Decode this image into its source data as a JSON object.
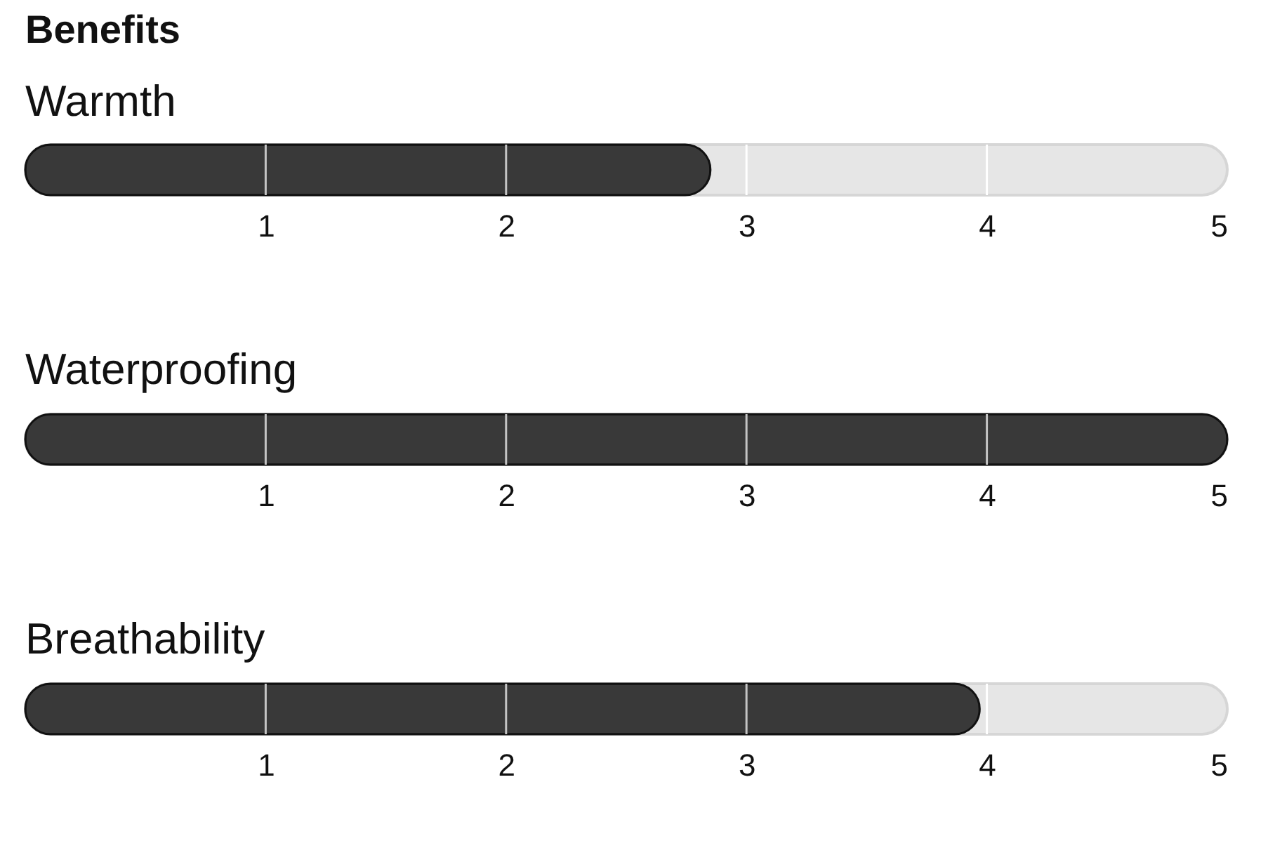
{
  "chart_data": [
    {
      "type": "bar",
      "title": "Benefits",
      "orientation": "horizontal",
      "categories": [
        "Warmth"
      ],
      "values": [
        2.85
      ],
      "color": "#393939",
      "xlim": [
        0,
        5
      ],
      "xticks": [
        1,
        2,
        3,
        4,
        5
      ],
      "ref_lines": [
        {
          "axis": "x",
          "value": 1,
          "color": "#c4c4c4"
        },
        {
          "axis": "x",
          "value": 2,
          "color": "#c4c4c4"
        },
        {
          "axis": "x",
          "value": 3,
          "color": "#ffffff"
        },
        {
          "axis": "x",
          "value": 4,
          "color": "#ffffff"
        }
      ]
    },
    {
      "type": "bar",
      "orientation": "horizontal",
      "categories": [
        "Waterproofing"
      ],
      "values": [
        5
      ],
      "color": "#393939",
      "xlim": [
        0,
        5
      ],
      "xticks": [
        1,
        2,
        3,
        4,
        5
      ],
      "ref_lines": [
        {
          "axis": "x",
          "value": 1,
          "color": "#c4c4c4"
        },
        {
          "axis": "x",
          "value": 2,
          "color": "#c4c4c4"
        },
        {
          "axis": "x",
          "value": 3,
          "color": "#c4c4c4"
        },
        {
          "axis": "x",
          "value": 4,
          "color": "#c4c4c4"
        }
      ]
    },
    {
      "type": "bar",
      "orientation": "horizontal",
      "categories": [
        "Breathability"
      ],
      "values": [
        3.97
      ],
      "color": "#393939",
      "xlim": [
        0,
        5
      ],
      "xticks": [
        1,
        2,
        3,
        4,
        5
      ],
      "ref_lines": [
        {
          "axis": "x",
          "value": 1,
          "color": "#c4c4c4"
        },
        {
          "axis": "x",
          "value": 2,
          "color": "#c4c4c4"
        },
        {
          "axis": "x",
          "value": 3,
          "color": "#c4c4c4"
        },
        {
          "axis": "x",
          "value": 4,
          "color": "#ffffff"
        }
      ]
    }
  ]
}
